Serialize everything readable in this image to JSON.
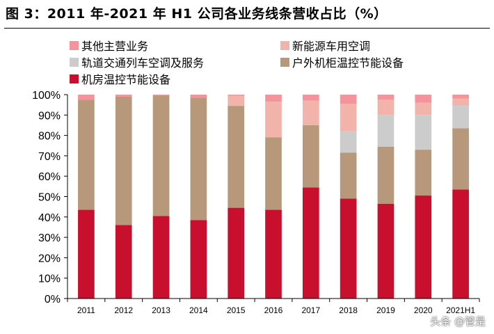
{
  "title": "图 3：2011 年-2021 年 H1 公司各业务线条营收占比（%）",
  "watermark": "头条 @管是",
  "chart_data": {
    "type": "bar",
    "stacked": true,
    "categories": [
      "2011",
      "2012",
      "2013",
      "2014",
      "2015",
      "2016",
      "2017",
      "2018",
      "2019",
      "2020",
      "2021H1"
    ],
    "ylim": [
      0,
      100
    ],
    "yticks": [
      "0%",
      "10%",
      "20%",
      "30%",
      "40%",
      "50%",
      "60%",
      "70%",
      "80%",
      "90%",
      "100%"
    ],
    "legend_placement": "top",
    "series": [
      {
        "name": "机房温控节能设备",
        "color": "#c8102e",
        "values": [
          43.5,
          36,
          40.5,
          38.5,
          44.5,
          43.5,
          54.5,
          49,
          46.5,
          50.5,
          53.5
        ]
      },
      {
        "name": "户外机柜温控节能设备",
        "color": "#b8987a",
        "values": [
          54,
          63,
          59,
          60,
          50,
          35.5,
          30.5,
          22.5,
          28,
          22.5,
          30
        ]
      },
      {
        "name": "轨道交通列车空调及服务",
        "color": "#cccccc",
        "values": [
          0,
          0,
          0,
          0,
          0,
          0,
          0,
          10.5,
          15.5,
          17,
          11
        ]
      },
      {
        "name": "新能源车用空调",
        "color": "#f2b3ab",
        "values": [
          0,
          0,
          0,
          0,
          5,
          17.5,
          12,
          13.5,
          7.5,
          6,
          3.5
        ]
      },
      {
        "name": "其他主营业务",
        "color": "#f4939b",
        "values": [
          2.5,
          1,
          0.5,
          1.5,
          0.5,
          3.5,
          3,
          4.5,
          2.5,
          4,
          2
        ]
      }
    ]
  }
}
